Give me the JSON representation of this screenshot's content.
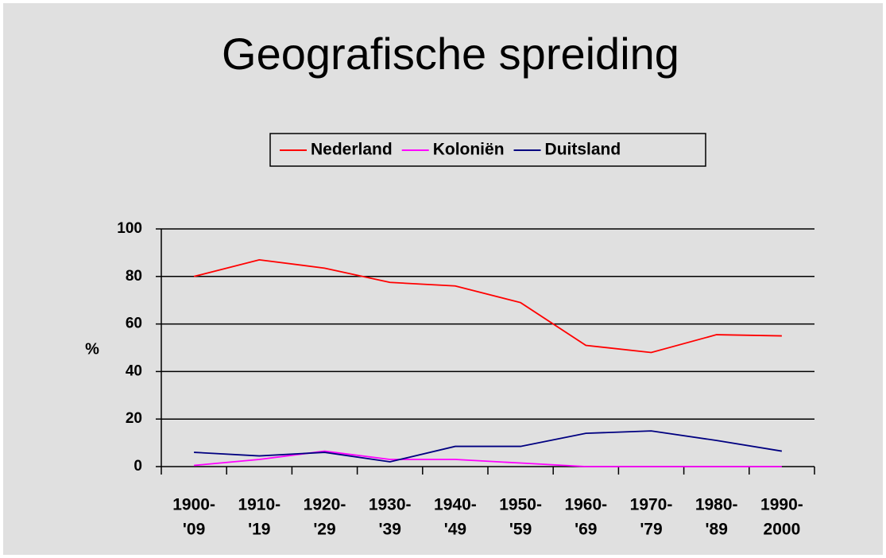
{
  "chart_data": {
    "type": "line",
    "title": "Geografische spreiding",
    "ylabel": "%",
    "categories": [
      [
        "1900-",
        "'09"
      ],
      [
        "1910-",
        "'19"
      ],
      [
        "1920-",
        "'29"
      ],
      [
        "1930-",
        "'39"
      ],
      [
        "1940-",
        "'49"
      ],
      [
        "1950-",
        "'59"
      ],
      [
        "1960-",
        "'69"
      ],
      [
        "1970-",
        "'79"
      ],
      [
        "1980-",
        "'89"
      ],
      [
        "1990-",
        "2000"
      ]
    ],
    "series": [
      {
        "name": "Nederland",
        "color": "#ff0000",
        "values": [
          80,
          87,
          83.5,
          77.5,
          76,
          69,
          51,
          48,
          55.5,
          55
        ]
      },
      {
        "name": "Koloniën",
        "color": "#ff00ff",
        "values": [
          0.5,
          3,
          6.5,
          3,
          3,
          1.5,
          0,
          0,
          0,
          0
        ]
      },
      {
        "name": "Duitsland",
        "color": "#000080",
        "values": [
          6,
          4.5,
          6,
          2,
          8.5,
          8.5,
          14,
          15,
          11,
          6.5
        ]
      }
    ],
    "ylim": [
      0,
      100
    ],
    "yticks": [
      0,
      20,
      40,
      60,
      80,
      100
    ],
    "grid": true,
    "legend": "top"
  }
}
